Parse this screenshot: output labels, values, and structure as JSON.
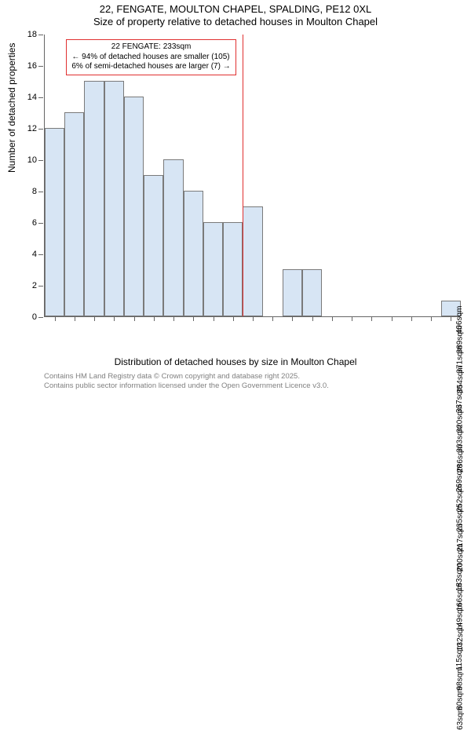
{
  "title": {
    "line1": "22, FENGATE, MOULTON CHAPEL, SPALDING, PE12 0XL",
    "line2": "Size of property relative to detached houses in Moulton Chapel"
  },
  "chart": {
    "type": "histogram",
    "ylabel": "Number of detached properties",
    "xlabel": "Distribution of detached houses by size in Moulton Chapel",
    "bar_fill": "#d7e5f4",
    "bar_border": "#7a7a7a",
    "ylim": [
      0,
      18
    ],
    "ytick_step": 2,
    "yticks": [
      0,
      2,
      4,
      6,
      8,
      10,
      12,
      14,
      16,
      18
    ],
    "categories": [
      "63sqm",
      "80sqm",
      "98sqm",
      "115sqm",
      "132sqm",
      "149sqm",
      "166sqm",
      "183sqm",
      "200sqm",
      "217sqm",
      "235sqm",
      "252sqm",
      "269sqm",
      "286sqm",
      "303sqm",
      "320sqm",
      "337sqm",
      "354sqm",
      "371sqm",
      "389sqm",
      "406sqm"
    ],
    "values": [
      12,
      13,
      15,
      15,
      14,
      9,
      10,
      8,
      6,
      6,
      7,
      0,
      3,
      3,
      0,
      0,
      0,
      0,
      0,
      0,
      1
    ],
    "marker_index": 10,
    "marker_color": "#e03030",
    "annotation": {
      "line1": "22 FENGATE: 233sqm",
      "line2": "← 94% of detached houses are smaller (105)",
      "line3": "6% of semi-detached houses are larger (7) →"
    }
  },
  "footer": {
    "line1": "Contains HM Land Registry data © Crown copyright and database right 2025.",
    "line2": "Contains public sector information licensed under the Open Government Licence v3.0."
  }
}
